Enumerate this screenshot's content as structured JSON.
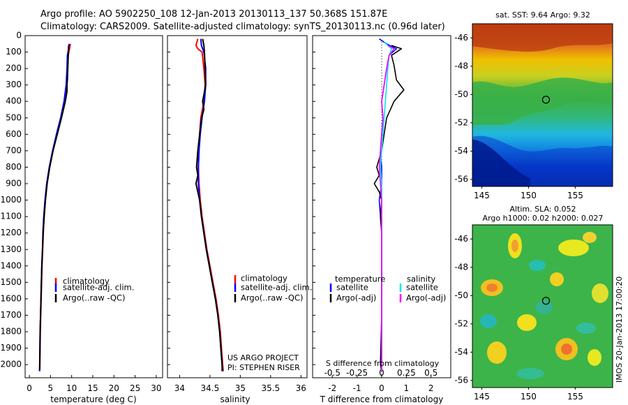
{
  "header": {
    "line1": "Argo profile: AO 5902250_108 12-Jan-2013 20130113_137 50.368S 151.87E",
    "line2": "Climatology: CARS2009. Satellite-adjusted climatology: synTS_20130113.nc (0.96d later)"
  },
  "colors": {
    "climatology": "#ff0000",
    "satellite": "#0000ff",
    "argo": "#000000",
    "s_satellite": "#00e5ee",
    "s_argo": "#ff00ff"
  },
  "chart_data": [
    {
      "type": "line",
      "id": "temperature",
      "xlabel": "temperature (deg C)",
      "ylabel": "",
      "xlim": [
        -1,
        31.5
      ],
      "ylim": [
        2080,
        0
      ],
      "xticks": [
        0,
        5,
        10,
        15,
        20,
        25,
        30
      ],
      "yticks": [
        0,
        100,
        200,
        300,
        400,
        500,
        600,
        700,
        800,
        900,
        1000,
        1100,
        1200,
        1300,
        1400,
        1500,
        1600,
        1700,
        1800,
        1900,
        2000
      ],
      "legend": [
        "climatology",
        "satellite-adj. clim.",
        "Argo(..raw -QC)"
      ],
      "series": [
        {
          "name": "climatology",
          "color": "#ff0000",
          "points": [
            [
              9.7,
              50
            ],
            [
              9.5,
              80
            ],
            [
              9.2,
              120
            ],
            [
              9.0,
              200
            ],
            [
              8.8,
              300
            ],
            [
              8.3,
              400
            ],
            [
              7.5,
              500
            ],
            [
              6.5,
              600
            ],
            [
              5.6,
              700
            ],
            [
              4.8,
              800
            ],
            [
              4.2,
              900
            ],
            [
              3.8,
              1000
            ],
            [
              3.5,
              1100
            ],
            [
              3.3,
              1200
            ],
            [
              3.15,
              1300
            ],
            [
              3.0,
              1400
            ],
            [
              2.9,
              1500
            ],
            [
              2.8,
              1600
            ],
            [
              2.7,
              1700
            ],
            [
              2.6,
              1800
            ],
            [
              2.55,
              1900
            ],
            [
              2.5,
              2000
            ],
            [
              2.45,
              2040
            ]
          ]
        },
        {
          "name": "satellite-adj. clim.",
          "color": "#0000ff",
          "points": [
            [
              9.4,
              50
            ],
            [
              9.3,
              80
            ],
            [
              9.0,
              120
            ],
            [
              8.9,
              200
            ],
            [
              8.7,
              300
            ],
            [
              8.2,
              400
            ],
            [
              7.4,
              500
            ],
            [
              6.4,
              600
            ],
            [
              5.5,
              700
            ],
            [
              4.7,
              800
            ],
            [
              4.1,
              900
            ],
            [
              3.7,
              1000
            ],
            [
              3.4,
              1100
            ],
            [
              3.2,
              1200
            ],
            [
              3.1,
              1300
            ],
            [
              2.95,
              1400
            ],
            [
              2.85,
              1500
            ],
            [
              2.75,
              1600
            ],
            [
              2.65,
              1700
            ],
            [
              2.55,
              1800
            ],
            [
              2.5,
              1900
            ],
            [
              2.45,
              2000
            ],
            [
              2.4,
              2040
            ]
          ]
        },
        {
          "name": "Argo(..raw -QC)",
          "color": "#000000",
          "points": [
            [
              9.3,
              60
            ],
            [
              9.2,
              120
            ],
            [
              9.1,
              200
            ],
            [
              9.0,
              270
            ],
            [
              8.9,
              300
            ],
            [
              8.9,
              340
            ],
            [
              8.5,
              400
            ],
            [
              7.6,
              500
            ],
            [
              6.6,
              600
            ],
            [
              5.6,
              700
            ],
            [
              4.8,
              800
            ],
            [
              4.2,
              900
            ],
            [
              3.8,
              1000
            ],
            [
              3.5,
              1100
            ],
            [
              3.25,
              1200
            ],
            [
              3.1,
              1300
            ],
            [
              2.95,
              1400
            ],
            [
              2.85,
              1500
            ],
            [
              2.75,
              1600
            ],
            [
              2.65,
              1700
            ],
            [
              2.55,
              1800
            ],
            [
              2.5,
              1900
            ],
            [
              2.45,
              2000
            ],
            [
              2.45,
              2030
            ]
          ]
        }
      ]
    },
    {
      "type": "line",
      "id": "salinity",
      "xlabel": "salinity",
      "ylabel": "",
      "xlim": [
        33.8,
        36.1
      ],
      "ylim": [
        2080,
        0
      ],
      "xticks": [
        34,
        34.5,
        35,
        35.5,
        36
      ],
      "legend": [
        "climatology",
        "satellite-adj. clim.",
        "Argo(..raw -QC)"
      ],
      "series": [
        {
          "name": "climatology",
          "color": "#ff0000",
          "points": [
            [
              34.3,
              20
            ],
            [
              34.27,
              60
            ],
            [
              34.3,
              80
            ],
            [
              34.37,
              100
            ],
            [
              34.4,
              200
            ],
            [
              34.42,
              300
            ],
            [
              34.4,
              400
            ],
            [
              34.35,
              500
            ],
            [
              34.33,
              600
            ],
            [
              34.32,
              700
            ],
            [
              34.31,
              800
            ],
            [
              34.32,
              900
            ],
            [
              34.34,
              1000
            ],
            [
              34.37,
              1100
            ],
            [
              34.41,
              1200
            ],
            [
              34.45,
              1300
            ],
            [
              34.5,
              1400
            ],
            [
              34.55,
              1500
            ],
            [
              34.6,
              1600
            ],
            [
              34.64,
              1700
            ],
            [
              34.67,
              1800
            ],
            [
              34.69,
              1900
            ],
            [
              34.71,
              2000
            ],
            [
              34.72,
              2040
            ]
          ]
        },
        {
          "name": "satellite-adj. clim.",
          "color": "#0000ff",
          "points": [
            [
              34.35,
              20
            ],
            [
              34.36,
              60
            ],
            [
              34.4,
              100
            ],
            [
              34.43,
              200
            ],
            [
              34.43,
              300
            ],
            [
              34.41,
              400
            ],
            [
              34.37,
              500
            ],
            [
              34.34,
              600
            ],
            [
              34.32,
              700
            ],
            [
              34.31,
              800
            ],
            [
              34.31,
              900
            ],
            [
              34.33,
              1000
            ],
            [
              34.36,
              1100
            ],
            [
              34.4,
              1200
            ],
            [
              34.44,
              1300
            ],
            [
              34.49,
              1400
            ],
            [
              34.54,
              1500
            ],
            [
              34.59,
              1600
            ],
            [
              34.63,
              1700
            ],
            [
              34.66,
              1800
            ],
            [
              34.68,
              1900
            ],
            [
              34.7,
              2000
            ],
            [
              34.71,
              2040
            ]
          ]
        },
        {
          "name": "Argo(..raw -QC)",
          "color": "#000000",
          "points": [
            [
              34.38,
              20
            ],
            [
              34.4,
              60
            ],
            [
              34.41,
              100
            ],
            [
              34.42,
              200
            ],
            [
              34.43,
              300
            ],
            [
              34.38,
              400
            ],
            [
              34.4,
              450
            ],
            [
              34.36,
              500
            ],
            [
              34.33,
              600
            ],
            [
              34.3,
              700
            ],
            [
              34.28,
              800
            ],
            [
              34.3,
              850
            ],
            [
              34.27,
              900
            ],
            [
              34.3,
              950
            ],
            [
              34.33,
              1000
            ],
            [
              34.36,
              1100
            ],
            [
              34.4,
              1200
            ],
            [
              34.44,
              1300
            ],
            [
              34.49,
              1400
            ],
            [
              34.54,
              1500
            ],
            [
              34.59,
              1600
            ],
            [
              34.63,
              1700
            ],
            [
              34.66,
              1800
            ],
            [
              34.68,
              1900
            ],
            [
              34.7,
              2000
            ],
            [
              34.7,
              2040
            ]
          ]
        }
      ],
      "notes": [
        "US ARGO PROJECT",
        "PI: STEPHEN RISER"
      ]
    },
    {
      "type": "line",
      "id": "difference",
      "xlabel": "T difference from climatology",
      "xlabel2": "S difference from climatology",
      "xlim": [
        -2.8,
        2.8
      ],
      "ylim": [
        2080,
        0
      ],
      "xticks": [
        -2,
        -1,
        0,
        1,
        2
      ],
      "xtick_labels": [
        "-2",
        "-1",
        "0",
        "1",
        "2"
      ],
      "xticks2": [
        -0.5,
        -0.25,
        0,
        0.25,
        0.5
      ],
      "xtick2_labels": [
        "-0.5",
        "-0.25",
        "0",
        "0.25",
        "0.5"
      ],
      "legend_headers": [
        "temperature",
        "salinity"
      ],
      "legend": [
        "satellite",
        "Argo(-adj)",
        "satellite",
        "Argo(-adj)"
      ],
      "series": [
        {
          "name": "satellite",
          "group": "temperature",
          "color": "#0000ff",
          "points": [
            [
              -0.1,
              20
            ],
            [
              0.2,
              50
            ],
            [
              0.6,
              80
            ],
            [
              0.3,
              120
            ],
            [
              0.2,
              200
            ],
            [
              0.1,
              300
            ],
            [
              0.0,
              400
            ],
            [
              0.05,
              500
            ],
            [
              0.0,
              600
            ],
            [
              -0.05,
              700
            ],
            [
              0.0,
              800
            ],
            [
              0.0,
              900
            ],
            [
              -0.1,
              1000
            ],
            [
              -0.05,
              1100
            ],
            [
              0.0,
              1200
            ],
            [
              0.0,
              1400
            ],
            [
              0.0,
              1700
            ],
            [
              0.0,
              2040
            ]
          ]
        },
        {
          "name": "Argo(-adj)",
          "group": "temperature",
          "color": "#000000",
          "points": [
            [
              0.4,
              60
            ],
            [
              0.8,
              80
            ],
            [
              0.4,
              120
            ],
            [
              0.5,
              180
            ],
            [
              0.6,
              270
            ],
            [
              0.9,
              330
            ],
            [
              0.5,
              400
            ],
            [
              0.2,
              500
            ],
            [
              0.1,
              600
            ],
            [
              0.0,
              700
            ],
            [
              -0.2,
              800
            ],
            [
              -0.1,
              850
            ],
            [
              -0.3,
              900
            ],
            [
              -0.1,
              950
            ],
            [
              0.0,
              1000
            ],
            [
              -0.05,
              1100
            ],
            [
              0.0,
              1200
            ],
            [
              0.0,
              1400
            ],
            [
              0.0,
              1700
            ],
            [
              -0.05,
              2000
            ],
            [
              0.0,
              2040
            ]
          ]
        },
        {
          "name": "satellite",
          "group": "salinity",
          "color": "#00e5ee",
          "points": [
            [
              0.1,
              40
            ],
            [
              0.4,
              80
            ],
            [
              0.3,
              120
            ],
            [
              0.25,
              200
            ],
            [
              0.2,
              300
            ],
            [
              0.15,
              400
            ],
            [
              0.1,
              500
            ],
            [
              0.05,
              600
            ],
            [
              0.0,
              700
            ],
            [
              -0.05,
              800
            ],
            [
              0.0,
              900
            ],
            [
              0.0,
              1000
            ],
            [
              0.0,
              1200
            ],
            [
              0.0,
              1400
            ],
            [
              0.0,
              1700
            ],
            [
              0.0,
              2040
            ]
          ]
        },
        {
          "name": "Argo(-adj)",
          "group": "salinity",
          "color": "#ff00ff",
          "points": [
            [
              0.25,
              60
            ],
            [
              0.5,
              80
            ],
            [
              0.3,
              120
            ],
            [
              0.2,
              200
            ],
            [
              0.1,
              300
            ],
            [
              0.0,
              400
            ],
            [
              0.05,
              500
            ],
            [
              0.0,
              600
            ],
            [
              -0.05,
              700
            ],
            [
              -0.1,
              800
            ],
            [
              -0.05,
              900
            ],
            [
              0.0,
              1000
            ],
            [
              0.0,
              1200
            ],
            [
              0.0,
              1400
            ],
            [
              0.0,
              1700
            ],
            [
              0.0,
              2040
            ]
          ]
        }
      ]
    },
    {
      "type": "heatmap",
      "id": "sst-map",
      "title": "sat. SST: 9.64 Argo: 9.32",
      "xlim": [
        144,
        159
      ],
      "ylim": [
        -56.5,
        -45
      ],
      "xticks": [
        145,
        150,
        155
      ],
      "yticks": [
        -46,
        -48,
        -50,
        -52,
        -54,
        -56
      ],
      "marker": [
        151.87,
        -50.368
      ]
    },
    {
      "type": "heatmap",
      "id": "sla-map",
      "title": "Altim. SLA: 0.052",
      "subtitle": "Argo h1000: 0.02 h2000: 0.027",
      "xlim": [
        144,
        159
      ],
      "ylim": [
        -56.5,
        -45
      ],
      "xticks": [
        145,
        150,
        155
      ],
      "yticks": [
        -46,
        -48,
        -50,
        -52,
        -54,
        -56
      ],
      "marker": [
        151.87,
        -50.368
      ]
    }
  ],
  "watermark": "IMOS 20-Jan-2013 17:00:20"
}
